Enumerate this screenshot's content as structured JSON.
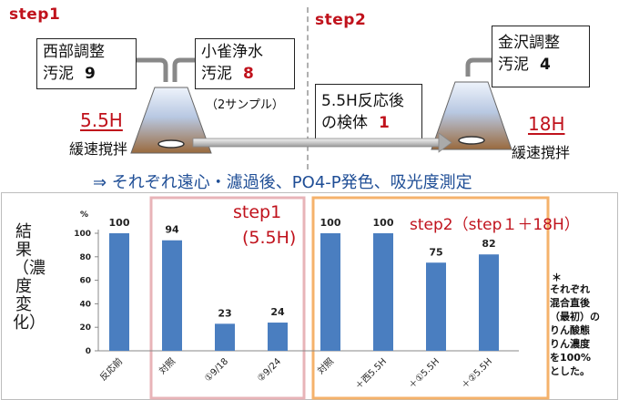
{
  "step1_header": "step1",
  "step2_header": "step2",
  "box_seibu": {
    "line1": "西部調整",
    "line2": "汚泥",
    "count": "9"
  },
  "box_kosuzume": {
    "line1": "小雀浄水",
    "line2": "汚泥",
    "count": "8",
    "note": "（2サンプル）"
  },
  "box_kanazawa": {
    "line1": "金沢調整",
    "line2": "汚泥",
    "count": "4"
  },
  "box_sample": {
    "line1": "5.5H反応後",
    "line2": "の検体",
    "count": "1"
  },
  "left_hour": "5.5H",
  "left_stir": "緩速撹拌",
  "right_hour": "18H",
  "right_stir": "緩速撹拌",
  "process_text": "⇒ それぞれ遠心・濾過後、PO4-P発色、吸光度測定",
  "y_axis_title": "結果（濃度変化）",
  "group1_label_line1": "step1",
  "group1_label_line2": "(5.5H)",
  "group2_label": "step2（step１＋18H）",
  "footnote_mark": "＊",
  "footnote": [
    "それぞれ",
    "混合直後",
    "（最初）の",
    "りん酸態",
    "りん濃度",
    "を100%",
    "とした。"
  ],
  "colors": {
    "bar": "#4a7ec0",
    "step1_frame": "#e8b4b8",
    "step2_frame": "#f5b26b",
    "accent_red": "#c0121c",
    "process_blue": "#1f4e96"
  },
  "chart_data": {
    "type": "bar",
    "categories": [
      "反応前",
      "対照",
      "①9/18",
      "②9/24",
      "対照",
      "＋西5.5H",
      "＋①5.5H",
      "＋②5.5H"
    ],
    "values": [
      100,
      94,
      23,
      24,
      100,
      100,
      75,
      82
    ],
    "yunit": "%",
    "ylim": [
      0,
      100
    ],
    "yticks": [
      0,
      20,
      40,
      60,
      80,
      100
    ],
    "data_labels": [
      "100",
      "94",
      "23",
      "24",
      "100",
      "100",
      "75",
      "82"
    ],
    "grid": false,
    "groups": [
      {
        "name": "step1 (5.5H)",
        "categories": [
          1,
          2,
          3
        ]
      },
      {
        "name": "step2（step１＋18H）",
        "categories": [
          4,
          5,
          6,
          7
        ]
      }
    ]
  }
}
